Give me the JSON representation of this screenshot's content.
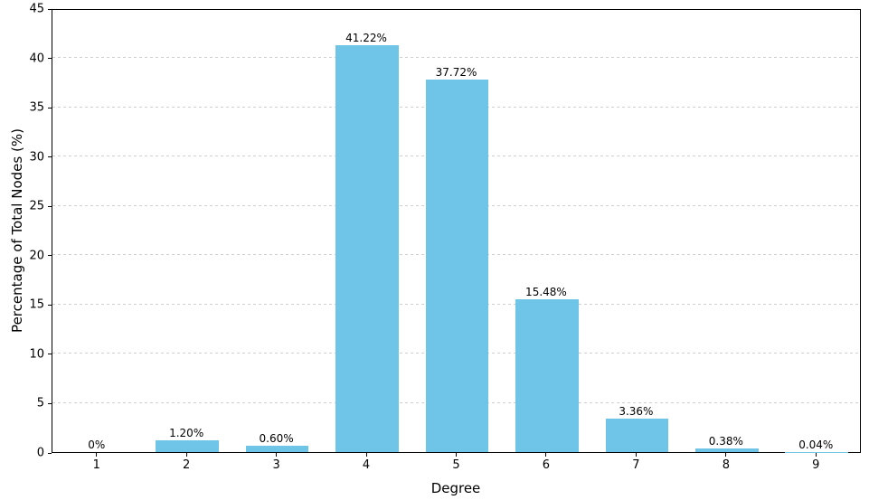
{
  "chart_data": {
    "type": "bar",
    "title": "",
    "xlabel": "Degree",
    "ylabel": "Percentage of Total Nodes (%)",
    "categories": [
      "1",
      "2",
      "3",
      "4",
      "5",
      "6",
      "7",
      "8",
      "9"
    ],
    "values": [
      0,
      1.2,
      0.6,
      41.22,
      37.72,
      15.48,
      3.36,
      0.38,
      0.04
    ],
    "bar_labels": [
      "0%",
      "1.20%",
      "0.60%",
      "41.22%",
      "37.72%",
      "15.48%",
      "3.36%",
      "0.38%",
      "0.04%"
    ],
    "ylim": [
      0,
      45
    ],
    "yticks": [
      0,
      5,
      10,
      15,
      20,
      25,
      30,
      35,
      40,
      45
    ],
    "grid": "horizontal-dashed",
    "legend": "none",
    "bar_color": "#6ec5e8",
    "axis_color": "#000000",
    "grid_color": "#cfcfcf",
    "background_color": "#ffffff",
    "bar_width_fraction": 0.7
  }
}
